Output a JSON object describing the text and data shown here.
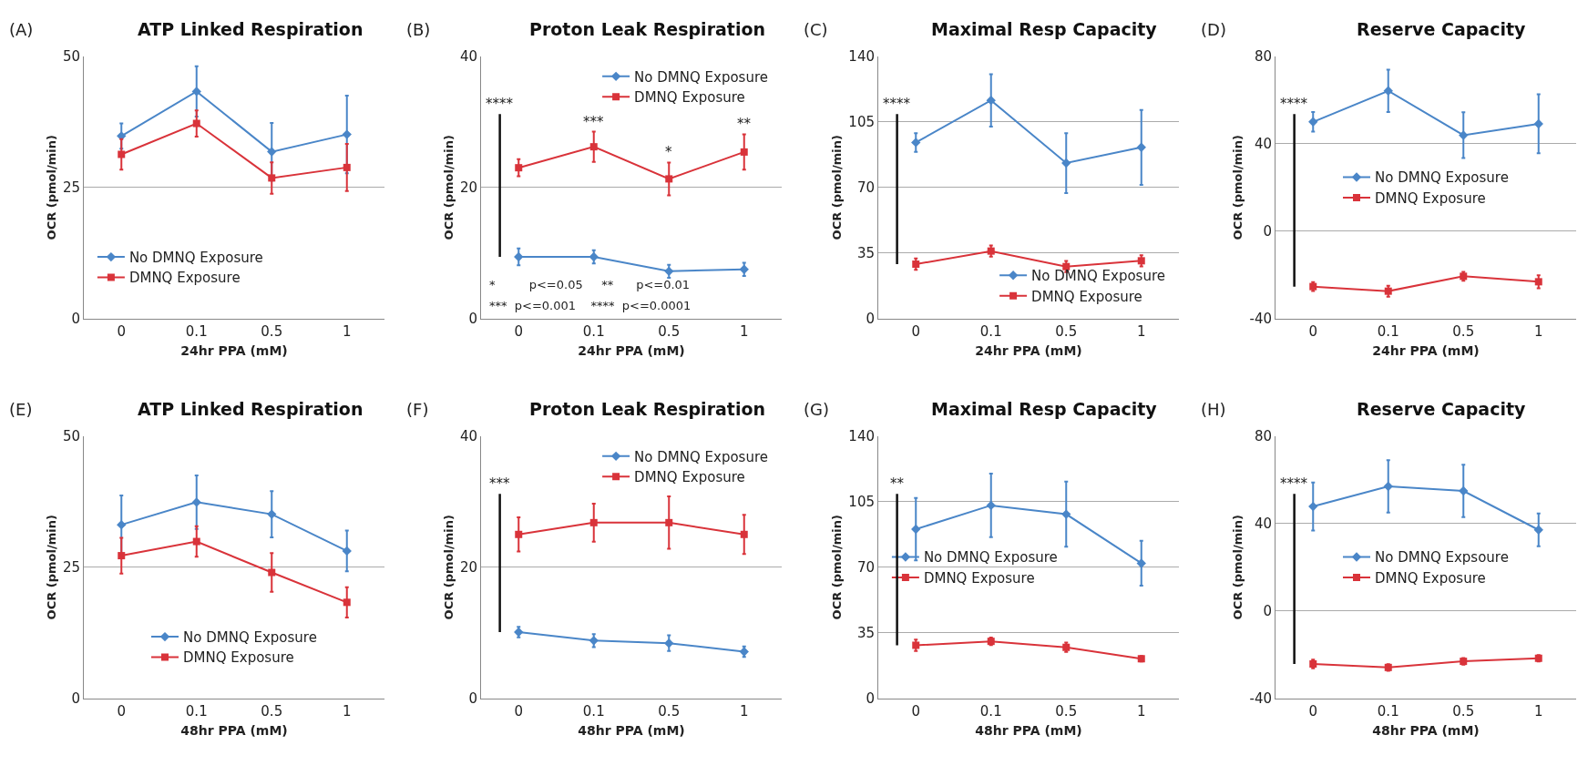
{
  "chart_data": [
    {
      "type": "line",
      "title": "ATP Linked Respiration",
      "xlabel": "24hr PPA (mM)",
      "ylabel": "OCR (pmol/min)",
      "categories": [
        "0",
        "0.1",
        "0.5",
        "1"
      ],
      "ylim": [
        0,
        50
      ],
      "yticks": [
        0,
        25,
        50
      ],
      "grid": "y",
      "legend": "bottom left",
      "annotations": [
        "(A)"
      ],
      "series": [
        {
          "name": "No DMNQ Exposure",
          "color": "#4a86c8",
          "marker": "diamond",
          "values": [
            34.8,
            43.3,
            31.8,
            35.1
          ],
          "errors": [
            2.4,
            4.8,
            5.5,
            7.4
          ]
        },
        {
          "name": "DMNQ Exposure",
          "color": "#d9333a",
          "marker": "square",
          "values": [
            31.3,
            37.2,
            26.8,
            28.8
          ],
          "errors": [
            2.9,
            2.5,
            3.0,
            4.5
          ]
        }
      ]
    },
    {
      "type": "line",
      "title": "Proton Leak Respiration",
      "xlabel": "24hr PPA (mM)",
      "ylabel": "OCR (pmol/min)",
      "categories": [
        "0",
        "0.1",
        "0.5",
        "1"
      ],
      "ylim": [
        0,
        40
      ],
      "yticks": [
        0,
        20,
        40
      ],
      "grid": "y",
      "legend": "top right",
      "annotations": [
        "(B)",
        "****",
        "*         p<=0.05     **      p<=0.01",
        "***  p<=0.001    ****  p<=0.0001",
        {
          "text": "***",
          "x": "0.1",
          "y": 28.5
        },
        {
          "text": "*",
          "x": "0.5",
          "y": 23.8
        },
        {
          "text": "**",
          "x": "1",
          "y": 28.1
        }
      ],
      "series": [
        {
          "name": "No DMNQ Exposure",
          "color": "#4a86c8",
          "marker": "diamond",
          "values": [
            9.4,
            9.4,
            7.2,
            7.5
          ],
          "errors": [
            1.3,
            1.0,
            1.0,
            1.0
          ]
        },
        {
          "name": "DMNQ Exposure",
          "color": "#d9333a",
          "marker": "square",
          "values": [
            23.0,
            26.2,
            21.3,
            25.4
          ],
          "errors": [
            1.3,
            2.3,
            2.5,
            2.7
          ]
        }
      ]
    },
    {
      "type": "line",
      "title": "Maximal Resp Capacity",
      "xlabel": "24hr PPA (mM)",
      "ylabel": "OCR (pmol/min)",
      "categories": [
        "0",
        "0.1",
        "0.5",
        "1"
      ],
      "ylim": [
        0,
        140
      ],
      "yticks": [
        0,
        35,
        70,
        105,
        140
      ],
      "grid": "y",
      "legend": "bottom right",
      "annotations": [
        "(C)",
        "****"
      ],
      "series": [
        {
          "name": "No DMNQ Exposure",
          "color": "#4a86c8",
          "marker": "diamond",
          "values": [
            94.0,
            116.5,
            83.0,
            91.4
          ],
          "errors": [
            5.0,
            14.0,
            16.0,
            20.0
          ]
        },
        {
          "name": "DMNQ Exposure",
          "color": "#d9333a",
          "marker": "square",
          "values": [
            29.0,
            36.0,
            27.7,
            30.8
          ],
          "errors": [
            3.0,
            3.0,
            3.0,
            3.0
          ]
        }
      ]
    },
    {
      "type": "line",
      "title": "Reserve Capacity",
      "xlabel": "24hr PPA (mM)",
      "ylabel": "OCR (pmol/min)",
      "categories": [
        "0",
        "0.1",
        "0.5",
        "1"
      ],
      "ylim": [
        -40,
        80
      ],
      "yticks": [
        -40,
        0,
        40,
        80
      ],
      "grid": "y",
      "legend": "center",
      "annotations": [
        "(D)",
        "****"
      ],
      "series": [
        {
          "name": "No DMNQ Exposure",
          "color": "#4a86c8",
          "marker": "diamond",
          "values": [
            50.0,
            64.2,
            43.9,
            49.1
          ],
          "errors": [
            4.5,
            9.7,
            10.5,
            13.5
          ]
        },
        {
          "name": "DMNQ Exposure",
          "color": "#d9333a",
          "marker": "square",
          "values": [
            -25.4,
            -27.5,
            -20.7,
            -23.2
          ],
          "errors": [
            2.0,
            2.5,
            2.0,
            3.0
          ]
        }
      ]
    },
    {
      "type": "line",
      "title": "ATP Linked Respiration",
      "xlabel": "48hr PPA (mM)",
      "ylabel": "OCR (pmol/min)",
      "categories": [
        "0",
        "0.1",
        "0.5",
        "1"
      ],
      "ylim": [
        0,
        50
      ],
      "yticks": [
        0,
        25,
        50
      ],
      "grid": "y",
      "legend": "bottom",
      "annotations": [
        "(E)"
      ],
      "series": [
        {
          "name": "No DMNQ Exposure",
          "color": "#4a86c8",
          "marker": "diamond",
          "values": [
            33.1,
            37.4,
            35.1,
            28.1
          ],
          "errors": [
            5.6,
            5.1,
            4.4,
            3.9
          ]
        },
        {
          "name": "DMNQ Exposure",
          "color": "#d9333a",
          "marker": "square",
          "values": [
            27.2,
            29.9,
            24.0,
            18.3
          ],
          "errors": [
            3.4,
            2.9,
            3.7,
            2.9
          ]
        }
      ]
    },
    {
      "type": "line",
      "title": "Proton Leak Respiration",
      "xlabel": "48hr PPA (mM)",
      "ylabel": "OCR (pmol/min)",
      "categories": [
        "0",
        "0.1",
        "0.5",
        "1"
      ],
      "ylim": [
        0,
        40
      ],
      "yticks": [
        0,
        20,
        40
      ],
      "grid": "y",
      "legend": "top right",
      "annotations": [
        "(F)",
        "***"
      ],
      "series": [
        {
          "name": "No DMNQ Exposure",
          "color": "#4a86c8",
          "marker": "diamond",
          "values": [
            10.1,
            8.8,
            8.4,
            7.1
          ],
          "errors": [
            0.8,
            1.0,
            1.2,
            0.8
          ]
        },
        {
          "name": "DMNQ Exposure",
          "color": "#d9333a",
          "marker": "square",
          "values": [
            25.0,
            26.8,
            26.8,
            25.0
          ],
          "errors": [
            2.6,
            2.9,
            4.0,
            3.0
          ]
        }
      ]
    },
    {
      "type": "line",
      "title": "Maximal Resp Capacity",
      "xlabel": "48hr PPA (mM)",
      "ylabel": "OCR (pmol/min)",
      "categories": [
        "0",
        "0.1",
        "0.5",
        "1"
      ],
      "ylim": [
        0,
        140
      ],
      "yticks": [
        0,
        35,
        70,
        105,
        140
      ],
      "grid": "y",
      "legend": "center left",
      "annotations": [
        "(G)",
        "**"
      ],
      "series": [
        {
          "name": "No DMNQ Exposure",
          "color": "#4a86c8",
          "marker": "diamond",
          "values": [
            90.3,
            103.0,
            98.3,
            72.1
          ],
          "errors": [
            16.7,
            17.0,
            17.4,
            12.0
          ]
        },
        {
          "name": "DMNQ Exposure",
          "color": "#d9333a",
          "marker": "square",
          "values": [
            28.3,
            30.4,
            27.2,
            21.1
          ],
          "errors": [
            3.0,
            2.0,
            2.5,
            1.5
          ]
        }
      ]
    },
    {
      "type": "line",
      "title": "Reserve Capacity",
      "xlabel": "48hr PPA (mM)",
      "ylabel": "OCR (pmol/min)",
      "categories": [
        "0",
        "0.1",
        "0.5",
        "1"
      ],
      "ylim": [
        -40,
        80
      ],
      "yticks": [
        -40,
        0,
        40,
        80
      ],
      "grid": "y",
      "legend": "center",
      "annotations": [
        "(H)",
        "****"
      ],
      "series": [
        {
          "name": "No DMNQ Expsoure",
          "color": "#4a86c8",
          "marker": "diamond",
          "values": [
            47.8,
            57.0,
            54.9,
            37.1
          ],
          "errors": [
            11.0,
            12.0,
            12.0,
            7.5
          ]
        },
        {
          "name": "DMNQ Exposure",
          "color": "#d9333a",
          "marker": "square",
          "values": [
            -24.3,
            -25.9,
            -23.1,
            -21.7
          ],
          "errors": [
            2.0,
            1.5,
            1.5,
            1.5
          ]
        }
      ]
    }
  ]
}
